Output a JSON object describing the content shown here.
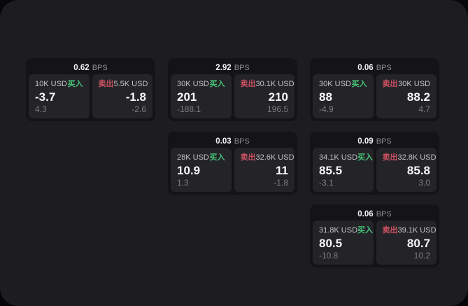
{
  "labels": {
    "bps_unit": "BPS",
    "buy": "买入",
    "sell": "卖出"
  },
  "colors": {
    "buy_green": "#46c277",
    "sell_red": "#cd5162",
    "panel_bg": "#1d1d1f",
    "card_bg": "#141416",
    "tile_bg": "#242428"
  },
  "cards": [
    {
      "bps": "0.62",
      "buy": {
        "size": "10K USD",
        "price": "-3.7",
        "delta": "4.3"
      },
      "sell": {
        "size": "5.5K USD",
        "price": "-1.8",
        "delta": "-2.6"
      }
    },
    {
      "bps": "2.92",
      "buy": {
        "size": "30K USD",
        "price": "201",
        "delta": "-188.1"
      },
      "sell": {
        "size": "30.1K USD",
        "price": "210",
        "delta": "196.5"
      }
    },
    {
      "bps": "0.06",
      "buy": {
        "size": "30K USD",
        "price": "88",
        "delta": "-4.9"
      },
      "sell": {
        "size": "30K USD",
        "price": "88.2",
        "delta": "4.7"
      }
    },
    {
      "bps": "0.03",
      "buy": {
        "size": "28K USD",
        "price": "10.9",
        "delta": "1.3"
      },
      "sell": {
        "size": "32.6K USD",
        "price": "11",
        "delta": "-1.8"
      }
    },
    {
      "bps": "0.09",
      "buy": {
        "size": "34.1K USD",
        "price": "85.5",
        "delta": "-3.1"
      },
      "sell": {
        "size": "32.8K USD",
        "price": "85.8",
        "delta": "3.0"
      }
    },
    {
      "bps": "0.06",
      "buy": {
        "size": "31.8K USD",
        "price": "80.5",
        "delta": "-10.8"
      },
      "sell": {
        "size": "39.1K USD",
        "price": "80.7",
        "delta": "10.2"
      }
    }
  ]
}
